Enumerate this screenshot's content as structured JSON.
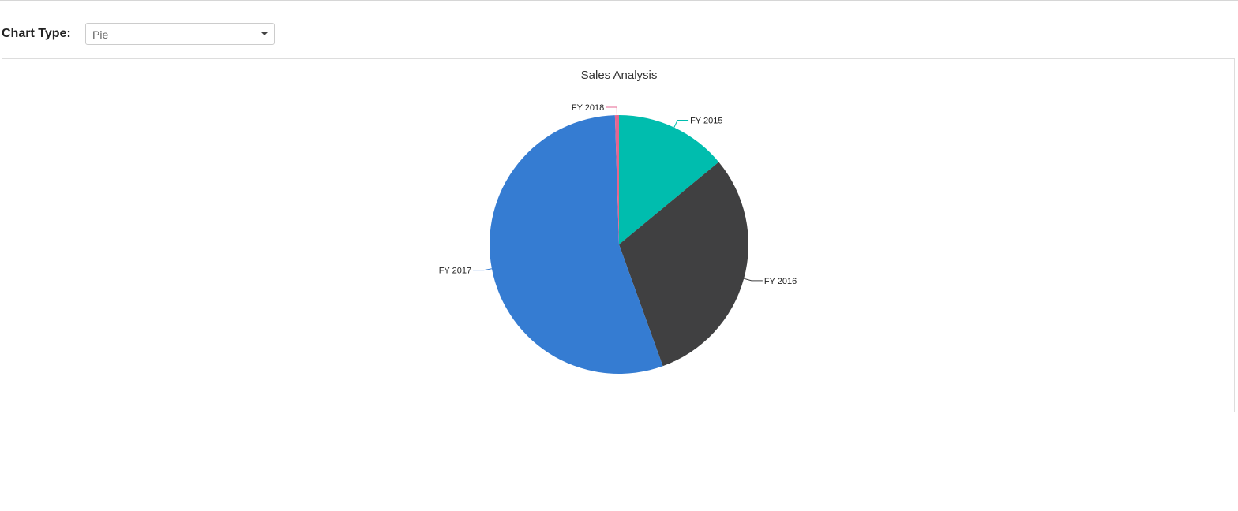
{
  "controls": {
    "chart_type_label": "Chart Type:",
    "chart_type_value": "Pie"
  },
  "chart_data": {
    "type": "pie",
    "title": "Sales Analysis",
    "slices": [
      {
        "label": "FY 2015",
        "value": 14.0,
        "color": "#00bdae"
      },
      {
        "label": "FY 2016",
        "value": 30.5,
        "color": "#404041"
      },
      {
        "label": "FY 2017",
        "value": 55.0,
        "color": "#357cd2"
      },
      {
        "label": "FY 2018",
        "value": 0.5,
        "color": "#e56590"
      }
    ]
  }
}
